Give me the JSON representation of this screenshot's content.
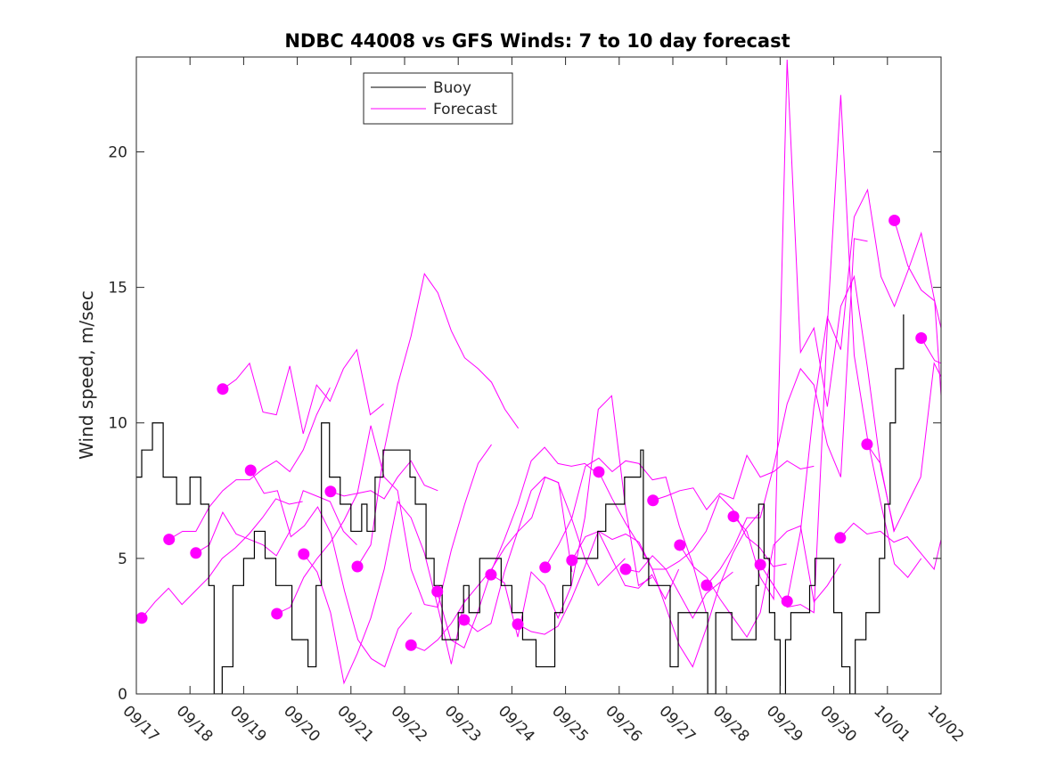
{
  "chart_data": {
    "type": "line",
    "title": "NDBC 44008 vs GFS Winds: 7 to 10 day forecast",
    "xlabel": "",
    "ylabel": "Wind speed, m/sec",
    "x_unit": "days since 09/17",
    "xlim": [
      0,
      15
    ],
    "ylim": [
      0,
      23.5
    ],
    "x_ticks": [
      0,
      1,
      2,
      3,
      4,
      5,
      6,
      7,
      8,
      9,
      10,
      11,
      12,
      13,
      14,
      15
    ],
    "x_tick_labels": [
      "09/17",
      "09/18",
      "09/19",
      "09/20",
      "09/21",
      "09/22",
      "09/23",
      "09/24",
      "09/25",
      "09/26",
      "09/27",
      "09/28",
      "09/29",
      "09/30",
      "10/01",
      "10/02"
    ],
    "y_ticks": [
      0,
      5,
      10,
      15,
      20
    ],
    "y_tick_labels": [
      "0",
      "5",
      "10",
      "15",
      "20"
    ],
    "grid": false,
    "legend": {
      "placement": "top-center",
      "entries": [
        "Buoy",
        "Forecast"
      ]
    },
    "colors": {
      "buoy": "#000000",
      "forecast": "#ff00ff"
    },
    "buoy": {
      "name": "Buoy",
      "x": [
        0,
        0.1,
        0.3,
        0.5,
        0.75,
        1.0,
        1.2,
        1.35,
        1.45,
        1.6,
        1.8,
        2.0,
        2.2,
        2.4,
        2.6,
        2.9,
        3.2,
        3.35,
        3.45,
        3.6,
        3.8,
        4.0,
        4.2,
        4.3,
        4.45,
        4.6,
        5.1,
        5.2,
        5.4,
        5.55,
        5.7,
        6.0,
        6.1,
        6.2,
        6.4,
        6.8,
        7.0,
        7.2,
        7.45,
        7.8,
        7.95,
        8.1,
        8.5,
        8.6,
        8.75,
        9.1,
        9.4,
        9.45,
        9.55,
        9.8,
        9.95,
        10.1,
        10.6,
        10.65,
        10.8,
        11.1,
        11.5,
        11.55,
        11.6,
        11.7,
        11.8,
        11.9,
        12.0,
        12.1,
        12.2,
        12.3,
        12.55,
        12.65,
        12.95,
        13.0,
        13.15,
        13.3,
        13.4,
        13.6,
        13.7,
        13.85,
        13.95,
        14.05,
        14.15,
        14.3
      ],
      "y": [
        8,
        9,
        10,
        8,
        7,
        8,
        7,
        4,
        0,
        1,
        4,
        5,
        6,
        5,
        4,
        2,
        1,
        4,
        10,
        8,
        7,
        6,
        7,
        6,
        8,
        9,
        8,
        7,
        5,
        4,
        2,
        3,
        4,
        3,
        5,
        4,
        3,
        2,
        1,
        3,
        4,
        5,
        5,
        6,
        7,
        8,
        9,
        5,
        4,
        4,
        1,
        3,
        3,
        0,
        3,
        2,
        2,
        4,
        7,
        5,
        3,
        2,
        0,
        2,
        3,
        3,
        4,
        5,
        5,
        3,
        1,
        0,
        2,
        3,
        3,
        5,
        7,
        10,
        12,
        14
      ]
    },
    "forecasts": [
      {
        "x0": 0.1,
        "values": [
          2.8,
          3.4,
          3.9,
          3.3,
          3.8,
          4.3,
          5.0,
          5.4,
          5.9,
          6.5,
          7.2,
          7.0,
          7.1
        ]
      },
      {
        "x0": 0.61,
        "values": [
          5.7,
          6.0,
          6.0,
          6.9,
          7.5,
          7.9,
          7.9,
          8.3,
          8.6,
          8.2,
          9.0,
          10.3,
          11.3
        ]
      },
      {
        "x0": 1.11,
        "values": [
          5.2,
          5.5,
          6.7,
          5.9,
          5.7,
          5.5,
          5.1,
          6.0,
          7.5,
          7.3,
          7.1,
          6.0,
          5.5
        ]
      },
      {
        "x0": 1.61,
        "values": [
          11.25,
          11.6,
          12.2,
          10.4,
          10.3,
          12.1,
          9.6,
          11.4,
          10.8,
          12.0,
          12.7,
          10.3,
          10.7
        ]
      },
      {
        "x0": 2.13,
        "values": [
          8.25,
          7.4,
          7.5,
          5.8,
          6.2,
          6.9,
          5.9,
          3.8,
          2.0,
          1.3,
          1.0,
          2.4,
          3.0
        ]
      },
      {
        "x0": 2.62,
        "values": [
          2.96,
          3.2,
          4.3,
          5.0,
          5.6,
          6.4,
          7.4,
          7.5,
          7.2,
          8.0,
          8.6,
          7.7,
          7.5
        ]
      },
      {
        "x0": 3.12,
        "values": [
          5.16,
          4.5,
          3.0,
          0.4,
          1.5,
          2.8,
          4.6,
          7.1,
          6.5,
          5.2,
          3.2,
          1.1,
          3.5
        ]
      },
      {
        "x0": 3.62,
        "values": [
          7.47,
          7.3,
          7.4,
          9.9,
          8.0,
          7.5,
          4.6,
          3.3,
          3.2,
          5.3,
          7.0,
          8.5,
          9.2
        ]
      },
      {
        "x0": 4.12,
        "values": [
          4.7,
          5.5,
          9.0,
          11.4,
          13.2,
          15.5,
          14.8,
          13.4,
          12.4,
          12.0,
          11.5,
          10.5,
          9.8
        ]
      },
      {
        "x0": 5.12,
        "values": [
          1.8,
          1.6,
          2.0,
          2.6,
          3.4,
          4.0,
          4.6,
          5.4,
          6.0,
          6.5,
          8.0,
          7.8,
          4.5
        ]
      },
      {
        "x0": 5.61,
        "values": [
          3.78,
          2.0,
          1.7,
          3.0,
          4.5,
          5.7,
          7.0,
          8.6,
          9.1,
          8.5,
          8.4,
          8.5,
          8.1
        ]
      },
      {
        "x0": 6.11,
        "values": [
          2.73,
          2.3,
          2.6,
          4.5,
          6.0,
          7.5,
          8.0,
          7.8,
          6.5,
          5.0,
          4.0,
          4.5,
          5.0
        ]
      },
      {
        "x0": 6.61,
        "values": [
          4.4,
          4.1,
          2.1,
          4.5,
          4.0,
          2.8,
          4.0,
          6.5,
          10.5,
          11.0,
          7.0,
          4.0,
          4.3
        ]
      },
      {
        "x0": 7.11,
        "values": [
          2.57,
          2.3,
          2.2,
          2.5,
          3.5,
          4.7,
          6.0,
          5.0,
          4.0,
          3.9,
          4.4,
          3.5,
          4.6
        ]
      },
      {
        "x0": 7.62,
        "values": [
          4.67,
          5.5,
          6.5,
          8.4,
          8.7,
          8.2,
          8.6,
          8.5,
          7.9,
          8.0,
          6.2,
          4.8,
          3.0
        ]
      },
      {
        "x0": 8.12,
        "values": [
          4.93,
          5.8,
          6.0,
          5.7,
          5.9,
          5.6,
          4.6,
          4.6,
          3.7,
          2.8,
          3.7,
          4.1,
          4.5
        ]
      },
      {
        "x0": 8.62,
        "values": [
          8.19,
          7.2,
          6.3,
          5.5,
          4.6,
          3.2,
          1.8,
          1.0,
          2.4,
          4.0,
          5.2,
          6.1,
          6.7
        ]
      },
      {
        "x0": 9.12,
        "values": [
          4.6,
          4.5,
          5.1,
          4.6,
          4.9,
          5.3,
          6.0,
          7.3,
          6.8,
          5.8,
          5.4,
          4.7,
          4.8
        ]
      },
      {
        "x0": 9.63,
        "values": [
          7.14,
          7.3,
          7.5,
          7.6,
          6.8,
          7.4,
          7.2,
          8.8,
          8.0,
          8.2,
          8.6,
          8.3,
          8.4
        ]
      },
      {
        "x0": 10.13,
        "values": [
          5.49,
          4.7,
          4.3,
          3.5,
          2.8,
          2.1,
          3.0,
          5.5,
          6.0,
          6.2,
          3.4,
          4.0,
          4.8
        ]
      },
      {
        "x0": 10.63,
        "values": [
          4.01,
          4.6,
          5.4,
          6.5,
          6.5,
          8.4,
          10.7,
          12.0,
          11.4,
          9.2,
          8.0,
          16.8,
          16.7
        ]
      },
      {
        "x0": 11.13,
        "values": [
          6.55,
          6.0,
          4.3,
          3.5,
          23.4,
          12.6,
          13.5,
          10.6,
          14.3,
          15.4,
          12.0,
          8.3,
          6.0
        ]
      },
      {
        "x0": 11.63,
        "values": [
          4.77,
          4.0,
          3.2,
          3.3,
          3.0,
          13.6,
          22.1,
          12.5,
          9.4,
          7.0,
          4.8,
          4.3,
          5.0
        ]
      },
      {
        "x0": 12.13,
        "values": [
          3.42,
          6.0,
          10.6,
          13.9,
          12.7,
          17.6,
          18.6,
          15.4,
          14.3,
          15.6,
          17.0,
          14.5,
          11.0
        ]
      },
      {
        "x0": 13.12,
        "values": [
          5.76,
          6.3,
          5.9,
          6.0,
          5.6,
          5.8,
          5.2,
          4.6,
          5.7
        ]
      },
      {
        "x0": 13.62,
        "values": [
          9.21,
          8.5,
          6.0,
          7.0,
          8.0,
          12.2,
          11.7,
          9.5,
          9.4,
          9.0,
          8.2,
          7.8,
          6.5
        ]
      },
      {
        "x0": 14.13,
        "values": [
          17.47,
          15.8,
          14.9,
          14.5,
          13.5
        ]
      },
      {
        "x0": 14.63,
        "values": [
          13.13,
          12.3,
          12.2
        ]
      }
    ],
    "forecast_step_days": 0.25
  }
}
